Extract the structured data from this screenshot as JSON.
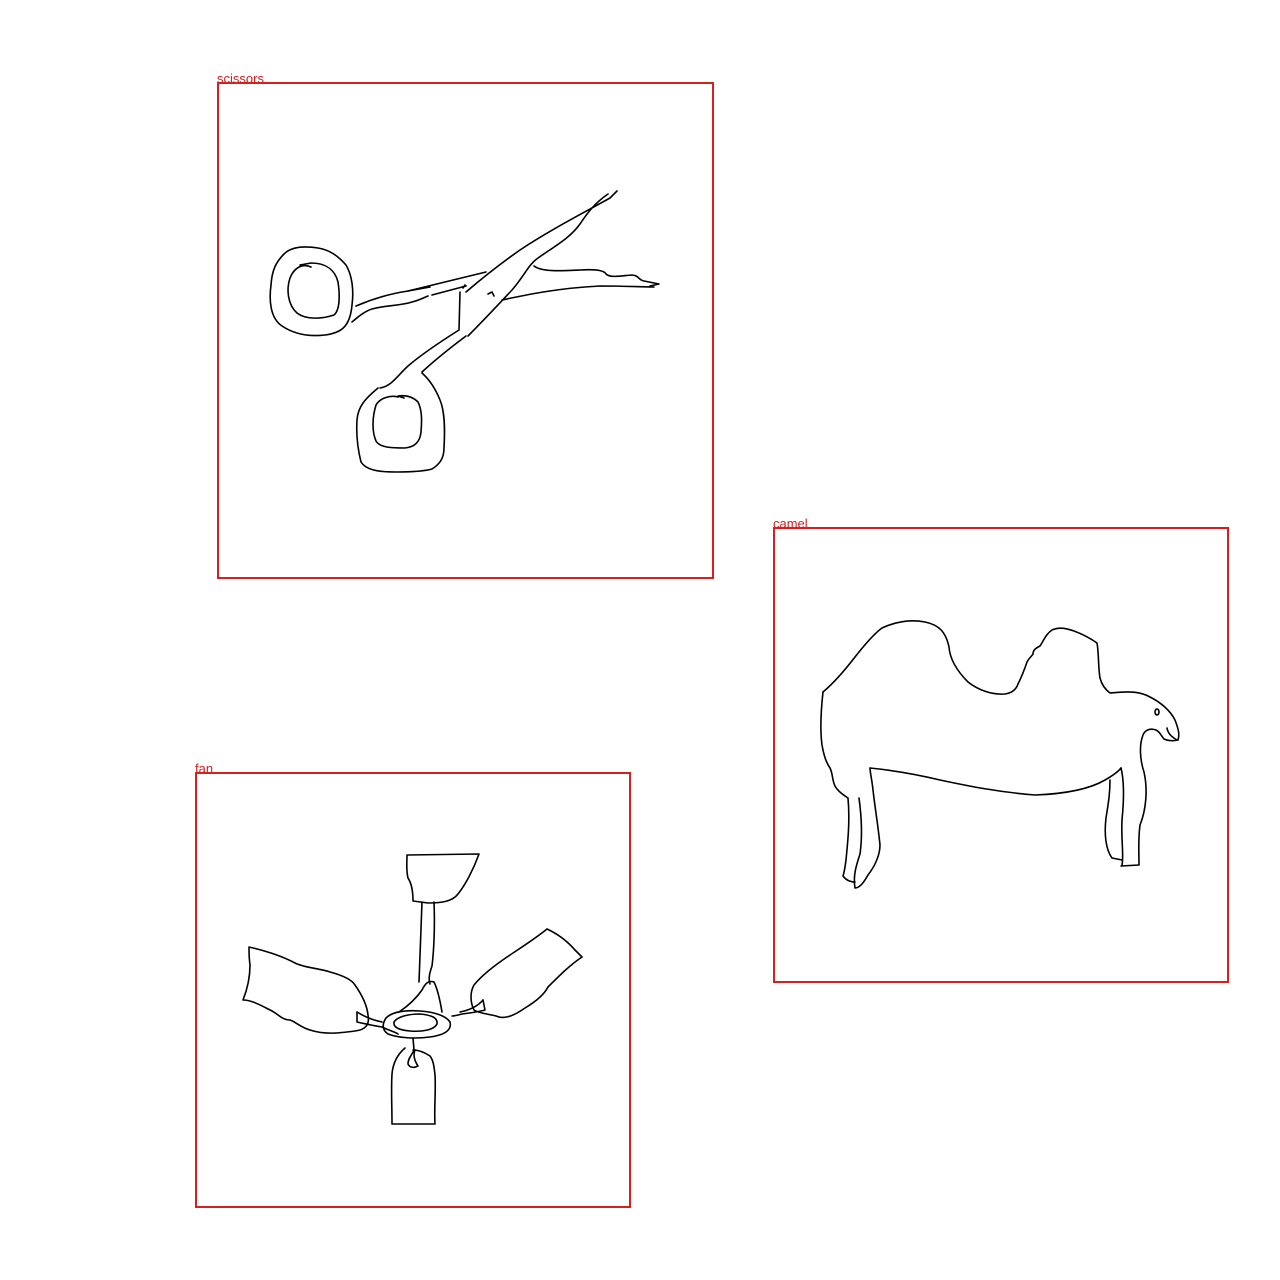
{
  "detections": [
    {
      "id": "scissors",
      "label": "scissors",
      "box_color": "#d62020"
    },
    {
      "id": "camel",
      "label": "camel",
      "box_color": "#d62020"
    },
    {
      "id": "fan",
      "label": "fan",
      "box_color": "#d62020"
    }
  ]
}
